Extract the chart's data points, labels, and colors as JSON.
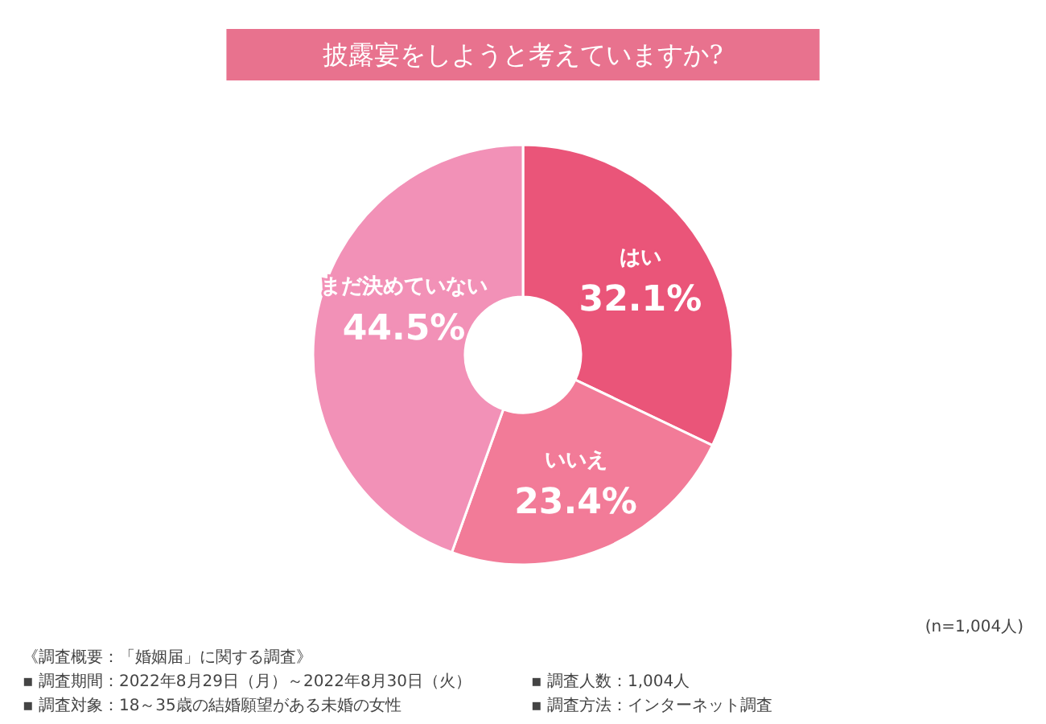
{
  "chart_data": {
    "type": "donut",
    "title": "披露宴をしようと考えていますか?",
    "categories": [
      "はい",
      "いいえ",
      "まだ決めていない"
    ],
    "values": [
      32.1,
      23.4,
      44.5
    ],
    "colors": [
      "#ea5579",
      "#f27b98",
      "#f291b7"
    ],
    "value_labels": [
      "32.1%",
      "23.4%",
      "44.5%"
    ],
    "legend": false,
    "annotations": [
      "(n=1,004人)",
      "《調査概要：「婚姻届」に関する調査》",
      "▪ 調査期間：2022年8月29日（月）～2022年8月30日（火）",
      "▪ 調査人数：1,004人",
      "▪ 調査対象：18～35歳の結婚願望がある未婚の女性",
      "▪ 調査方法：インターネット調査"
    ]
  }
}
